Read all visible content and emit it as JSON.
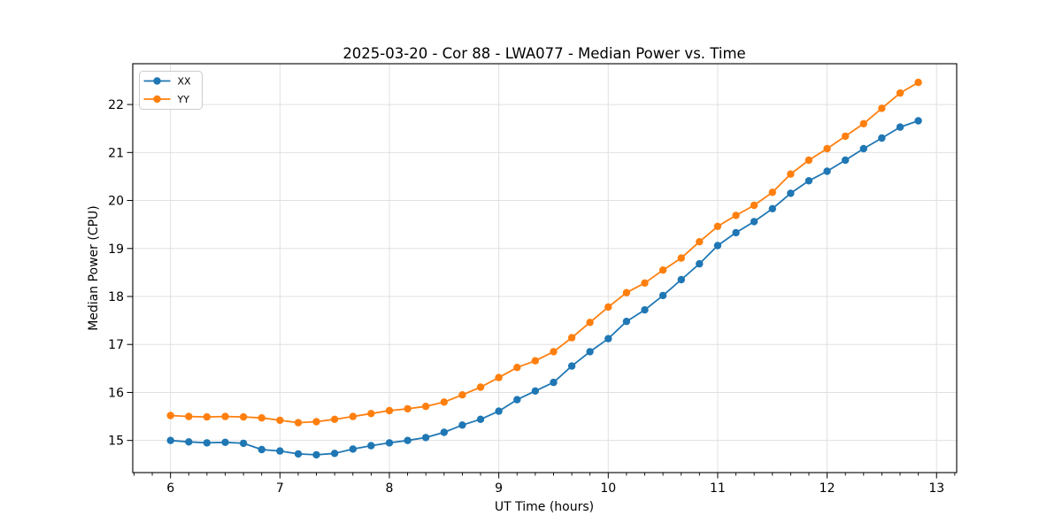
{
  "figure": {
    "background": "#ffffff",
    "spine_color": "#000000",
    "grid_color": "#e0e0e0"
  },
  "chart_data": {
    "type": "line",
    "title": "2025-03-20 - Cor 88 - LWA077 - Median Power vs. Time",
    "xlabel": "UT Time (hours)",
    "ylabel": "Median Power (CPU)",
    "xlim": [
      5.655,
      13.184
    ],
    "ylim": [
      14.33,
      22.85
    ],
    "x_ticks": [
      6,
      7,
      8,
      9,
      10,
      11,
      12,
      13
    ],
    "y_ticks": [
      15,
      16,
      17,
      18,
      19,
      20,
      21,
      22
    ],
    "x_minor_step": 0.166667,
    "grid": true,
    "legend_position": "upper left",
    "marker": "circle",
    "x": [
      6.0,
      6.167,
      6.333,
      6.5,
      6.667,
      6.833,
      7.0,
      7.167,
      7.333,
      7.5,
      7.667,
      7.833,
      8.0,
      8.167,
      8.333,
      8.5,
      8.667,
      8.833,
      9.0,
      9.167,
      9.333,
      9.5,
      9.667,
      9.833,
      10.0,
      10.167,
      10.333,
      10.5,
      10.667,
      10.833,
      11.0,
      11.167,
      11.333,
      11.5,
      11.667,
      11.833,
      12.0,
      12.167,
      12.333,
      12.5,
      12.667,
      12.833
    ],
    "series": [
      {
        "name": "XX",
        "color": "#1f77b4",
        "values": [
          15.0,
          14.97,
          14.95,
          14.96,
          14.94,
          14.81,
          14.78,
          14.72,
          14.7,
          14.73,
          14.82,
          14.89,
          14.95,
          15.0,
          15.06,
          15.17,
          15.32,
          15.44,
          15.61,
          15.85,
          16.03,
          16.21,
          16.55,
          16.85,
          17.12,
          17.48,
          17.72,
          18.02,
          18.35,
          18.68,
          19.06,
          19.33,
          19.56,
          19.83,
          20.15,
          20.41,
          20.61,
          20.84,
          21.08,
          21.3,
          21.53,
          21.66
        ]
      },
      {
        "name": "YY",
        "color": "#ff7f0e",
        "values": [
          15.52,
          15.5,
          15.49,
          15.5,
          15.49,
          15.47,
          15.42,
          15.37,
          15.39,
          15.44,
          15.5,
          15.56,
          15.62,
          15.66,
          15.71,
          15.8,
          15.95,
          16.11,
          16.31,
          16.52,
          16.66,
          16.85,
          17.14,
          17.46,
          17.78,
          18.08,
          18.28,
          18.55,
          18.8,
          19.14,
          19.46,
          19.69,
          19.9,
          20.17,
          20.55,
          20.84,
          21.08,
          21.34,
          21.6,
          21.92,
          22.24,
          22.46
        ]
      }
    ]
  }
}
